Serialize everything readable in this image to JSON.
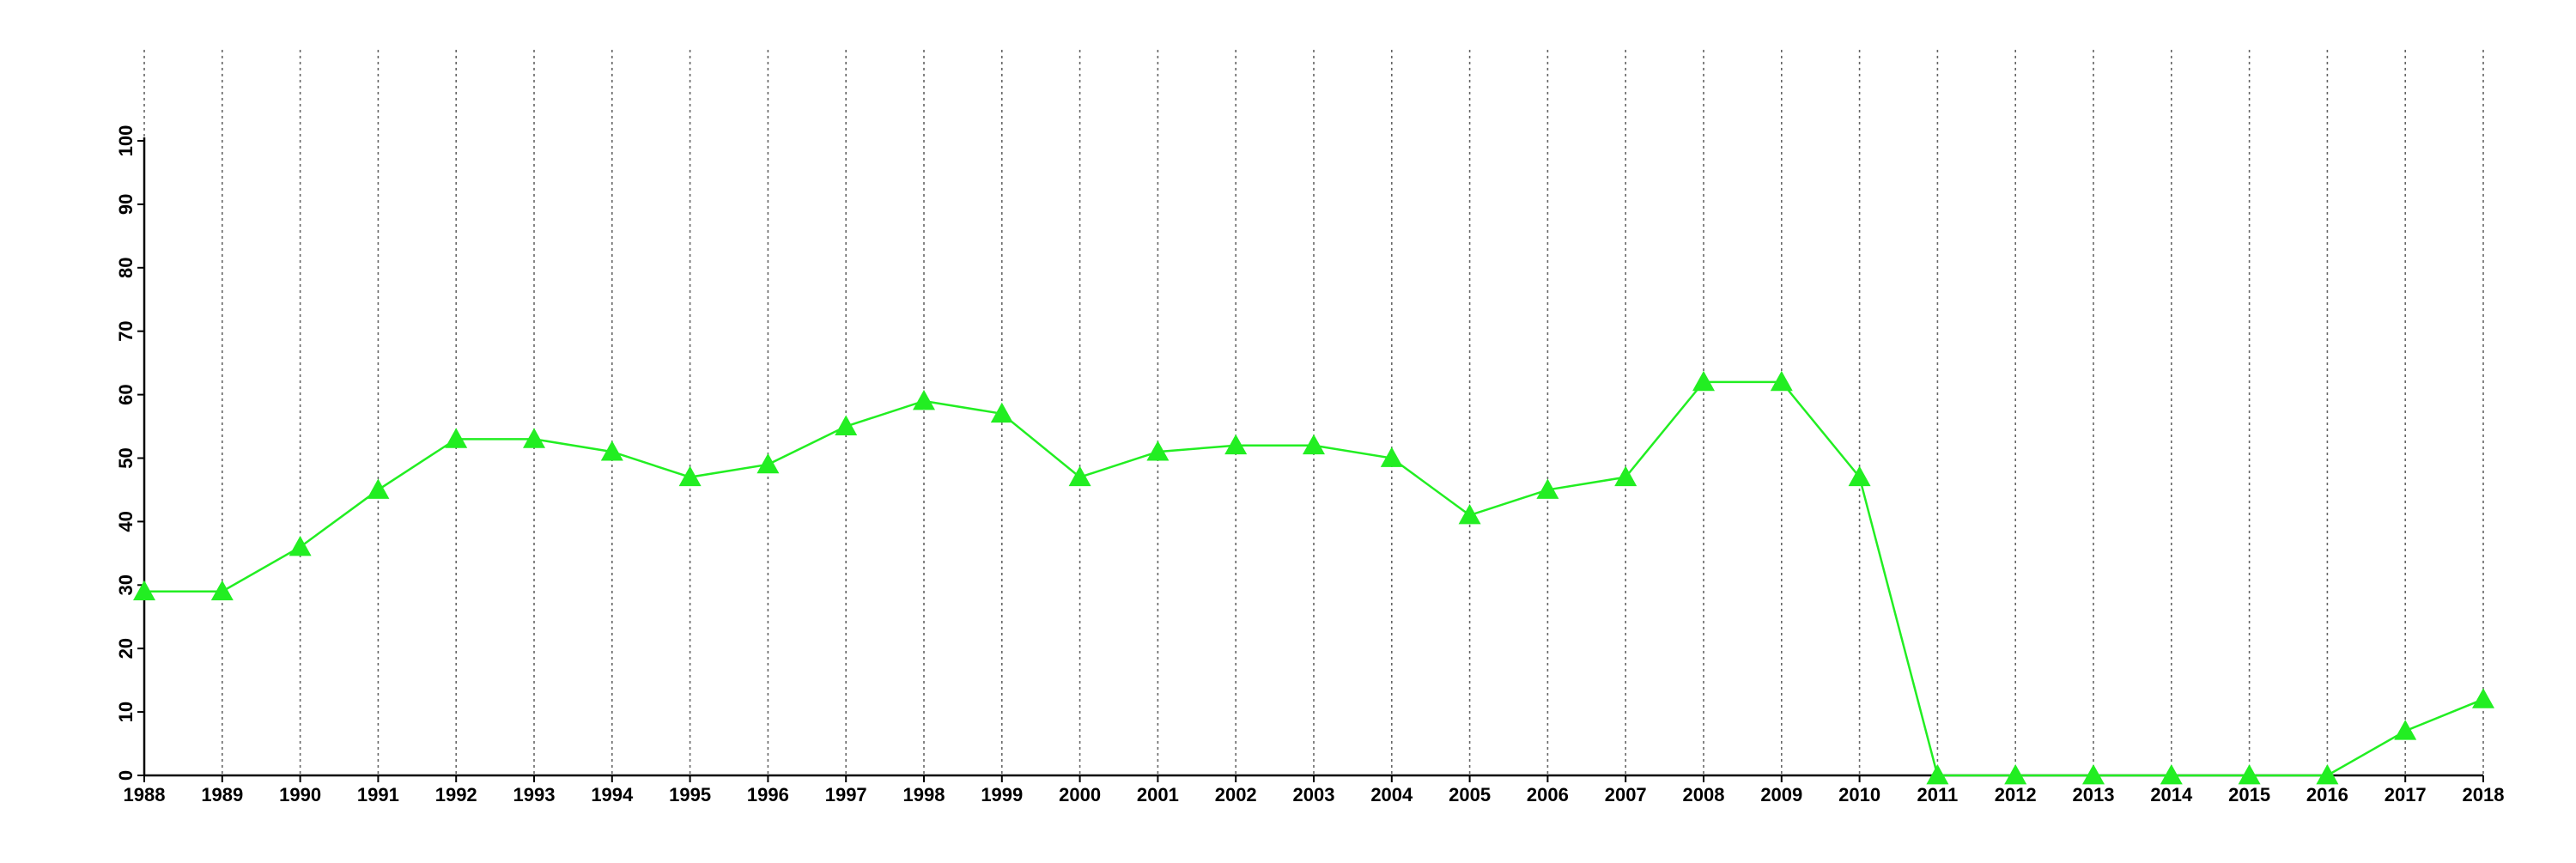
{
  "chart_data": {
    "type": "line",
    "x": [
      1988,
      1989,
      1990,
      1991,
      1992,
      1993,
      1994,
      1995,
      1996,
      1997,
      1998,
      1999,
      2000,
      2001,
      2002,
      2003,
      2004,
      2005,
      2006,
      2007,
      2008,
      2009,
      2010,
      2011,
      2012,
      2013,
      2014,
      2015,
      2016,
      2017,
      2018
    ],
    "values": [
      29,
      29,
      36,
      45,
      53,
      53,
      51,
      47,
      49,
      55,
      59,
      57,
      47,
      51,
      52,
      52,
      50,
      41,
      45,
      47,
      62,
      62,
      47,
      0,
      0,
      0,
      0,
      0,
      0,
      7,
      12
    ],
    "color": "#22ee22",
    "marker": "triangle",
    "xlim": [
      1988,
      2018
    ],
    "xticks": [
      1988,
      1989,
      1990,
      1991,
      1992,
      1993,
      1994,
      1995,
      1996,
      1997,
      1998,
      1999,
      2000,
      2001,
      2002,
      2003,
      2004,
      2005,
      2006,
      2007,
      2008,
      2009,
      2010,
      2011,
      2012,
      2013,
      2014,
      2015,
      2016,
      2017,
      2018
    ],
    "ylim": [
      0,
      100
    ],
    "yticks": [
      0,
      10,
      20,
      30,
      40,
      50,
      60,
      70,
      80,
      90,
      100
    ],
    "grid": "x"
  }
}
